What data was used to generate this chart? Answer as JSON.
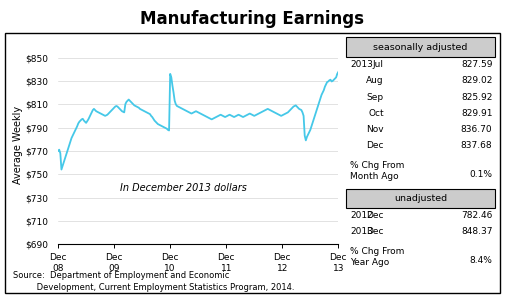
{
  "title": "Manufacturing Earnings",
  "ylabel": "Average Weekly",
  "ylim": [
    690,
    860
  ],
  "yticks": [
    690,
    710,
    730,
    750,
    770,
    790,
    810,
    830,
    850
  ],
  "ytick_labels": [
    "$690",
    "$710",
    "$730",
    "$750",
    "$770",
    "$790",
    "$810",
    "$830",
    "$850"
  ],
  "xtick_labels": [
    "Dec\n08",
    "Dec\n09",
    "Dec\n10",
    "Dec\n11",
    "Dec\n12",
    "Dec\n13"
  ],
  "annotation": "In December 2013 dollars",
  "line_color": "#45c8e8",
  "line_width": 1.3,
  "source_text": "Source:  Department of Employment and Economic\n         Development, Current Employment Statistics Program, 2014.",
  "seasonally_adjusted_label": "seasonally adjusted",
  "unadjusted_label": "unadjusted",
  "sa_data": [
    [
      "2013",
      "Jul",
      "827.59"
    ],
    [
      "",
      "Aug",
      "829.02"
    ],
    [
      "",
      "Sep",
      "825.92"
    ],
    [
      "",
      "Oct",
      "829.91"
    ],
    [
      "",
      "Nov",
      "836.70"
    ],
    [
      "",
      "Dec",
      "837.68"
    ]
  ],
  "sa_pct_label": "% Chg From\nMonth Ago",
  "sa_pct_value": "0.1%",
  "ua_data": [
    [
      "2012",
      "Dec",
      "782.46"
    ],
    [
      "2013",
      "Dec",
      "848.37"
    ]
  ],
  "ua_pct_label": "% Chg From\nYear Ago",
  "ua_pct_value": "8.4%",
  "series": [
    770.0,
    771.0,
    768.0,
    754.0,
    757.0,
    760.0,
    763.0,
    766.0,
    769.0,
    772.0,
    775.0,
    778.0,
    781.0,
    783.0,
    785.0,
    787.0,
    789.0,
    791.0,
    793.5,
    795.0,
    796.0,
    797.0,
    797.5,
    796.0,
    795.0,
    794.0,
    795.5,
    797.0,
    799.0,
    801.0,
    803.0,
    805.0,
    806.0,
    805.0,
    804.0,
    803.5,
    803.0,
    802.5,
    802.0,
    801.5,
    801.0,
    800.5,
    800.0,
    800.5,
    801.0,
    802.0,
    803.0,
    804.0,
    805.0,
    806.0,
    807.0,
    808.0,
    808.5,
    808.0,
    807.0,
    806.0,
    805.0,
    804.0,
    803.5,
    803.0,
    810.0,
    812.0,
    813.0,
    814.0,
    813.0,
    812.0,
    811.0,
    810.0,
    809.0,
    808.5,
    808.0,
    807.5,
    807.0,
    806.0,
    805.5,
    805.0,
    804.5,
    804.0,
    803.5,
    803.0,
    802.5,
    802.0,
    801.5,
    800.0,
    799.0,
    797.5,
    796.0,
    795.0,
    794.0,
    793.0,
    792.5,
    792.0,
    791.5,
    791.0,
    790.5,
    790.0,
    789.5,
    789.0,
    788.0,
    787.5,
    836.0,
    833.0,
    826.0,
    820.0,
    813.0,
    810.0,
    808.5,
    808.0,
    807.5,
    807.0,
    806.5,
    806.0,
    805.5,
    805.0,
    804.5,
    804.0,
    803.5,
    803.0,
    802.5,
    802.0,
    802.5,
    803.0,
    803.5,
    804.0,
    803.5,
    803.0,
    802.5,
    802.0,
    801.5,
    801.0,
    800.5,
    800.0,
    799.5,
    799.0,
    798.5,
    798.0,
    797.5,
    797.0,
    797.5,
    798.0,
    798.5,
    799.0,
    799.5,
    800.0,
    800.5,
    801.0,
    800.5,
    800.0,
    799.5,
    799.0,
    799.5,
    800.0,
    800.5,
    801.0,
    800.5,
    800.0,
    799.5,
    799.0,
    799.5,
    800.0,
    800.5,
    801.0,
    800.5,
    800.0,
    799.5,
    799.0,
    799.5,
    800.0,
    800.5,
    801.0,
    801.5,
    802.0,
    801.5,
    801.0,
    800.5,
    800.0,
    800.5,
    801.0,
    801.5,
    802.0,
    802.5,
    803.0,
    803.5,
    804.0,
    804.5,
    805.0,
    805.5,
    806.0,
    805.5,
    805.0,
    804.5,
    804.0,
    803.5,
    803.0,
    802.5,
    802.0,
    801.5,
    801.0,
    800.5,
    800.0,
    800.5,
    801.0,
    801.5,
    802.0,
    802.5,
    803.0,
    804.0,
    805.0,
    806.0,
    807.0,
    808.0,
    808.5,
    809.0,
    808.0,
    807.0,
    806.0,
    805.5,
    805.0,
    803.0,
    800.0,
    783.0,
    779.0,
    782.0,
    784.0,
    786.0,
    788.0,
    791.0,
    794.0,
    797.0,
    800.0,
    803.0,
    806.0,
    809.0,
    812.0,
    815.0,
    818.0,
    820.0,
    822.0,
    825.0,
    827.0,
    829.0,
    829.5,
    830.5,
    831.0,
    829.5,
    830.0,
    831.0,
    832.0,
    833.0,
    836.0,
    837.68
  ]
}
